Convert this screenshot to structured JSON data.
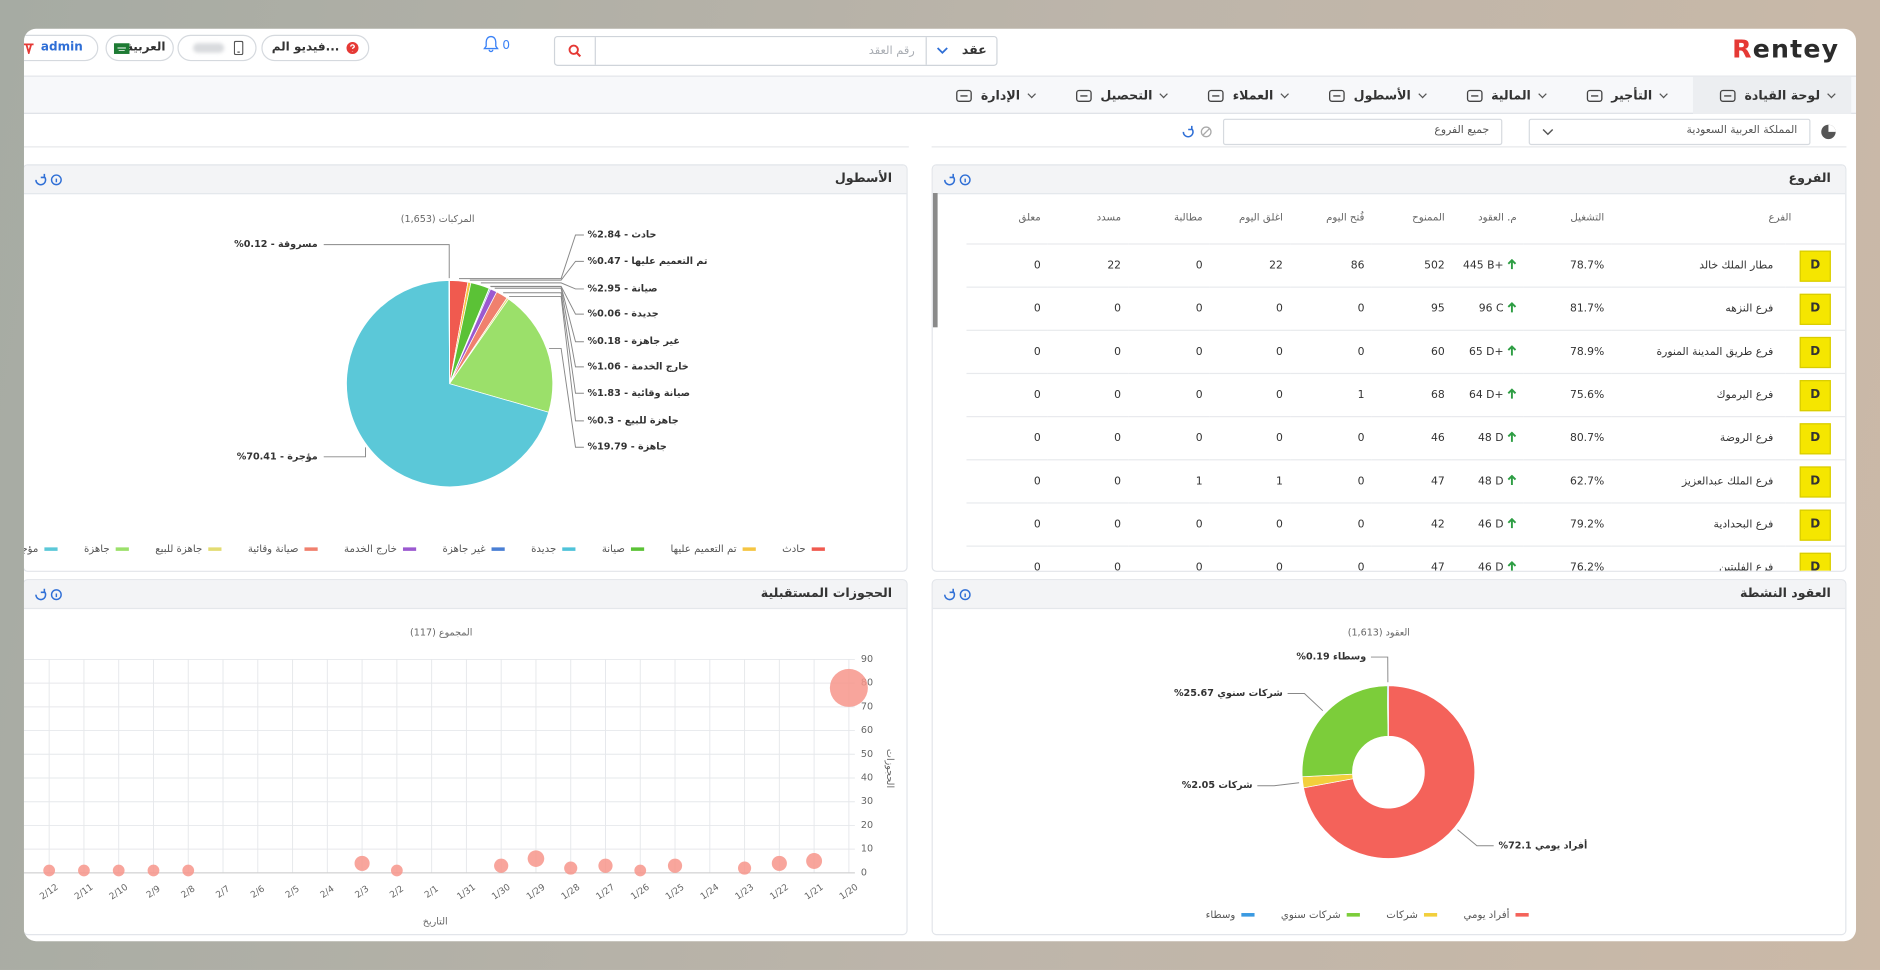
{
  "header": {
    "logo": "Rentey",
    "search_type": "عقد",
    "search_placeholder": "رقم العقد",
    "notifications": "0",
    "video_button": "فيديو الم...",
    "language": "العربية",
    "user": "admin"
  },
  "nav": [
    "لوحة القيادة",
    "التأجير",
    "المالية",
    "الأسطول",
    "العملاء",
    "التحصيل",
    "الإدارة"
  ],
  "filters": {
    "country": "المملكة العربية السعودية",
    "branch": "جميع الفروع"
  },
  "branches": {
    "title": "الفروع",
    "columns": [
      "الفرع",
      "التشغيل",
      "م. العقود",
      "الممنوح",
      "فُتح اليوم",
      "اغلق اليوم",
      "مطالبة",
      "مسدد",
      "معلق"
    ],
    "rows": [
      [
        "D",
        "مطار الملك خالد",
        "78.7%",
        "445 B+",
        "502",
        "86",
        "22",
        "0",
        "22",
        "0"
      ],
      [
        "D",
        "فرع النزهه",
        "81.7%",
        "96 C",
        "95",
        "0",
        "0",
        "0",
        "0",
        "0"
      ],
      [
        "D",
        "فرع طريق المدينة المنورة",
        "78.9%",
        "65 D+",
        "60",
        "0",
        "0",
        "0",
        "0",
        "0"
      ],
      [
        "D",
        "فرع اليرموك",
        "75.6%",
        "64 D+",
        "68",
        "1",
        "0",
        "0",
        "0",
        "0"
      ],
      [
        "D",
        "فرع الروضة",
        "80.7%",
        "48 D",
        "46",
        "0",
        "0",
        "0",
        "0",
        "0"
      ],
      [
        "D",
        "فرع الملك عبدالعزيز",
        "62.7%",
        "48 D",
        "47",
        "0",
        "1",
        "1",
        "0",
        "0"
      ],
      [
        "D",
        "فرع البحدادية",
        "79.2%",
        "46 D",
        "42",
        "0",
        "0",
        "0",
        "0",
        "0"
      ],
      [
        "D",
        "فرع الفليتين",
        "76.2%",
        "46 D",
        "47",
        "0",
        "0",
        "0",
        "0",
        "0"
      ]
    ]
  },
  "chart_data": [
    {
      "type": "pie",
      "title": "الأسطول",
      "subtitle": "المركبات (1,653)",
      "categories": [
        "حادث",
        "تم التعميم عليها",
        "صيانة",
        "جديدة",
        "غير جاهزة",
        "خارج الخدمة",
        "صيانة وقائية",
        "جاهزة للبيع",
        "جاهزة",
        "مؤجرة",
        "مسروقة"
      ],
      "values": [
        2.84,
        0.47,
        2.95,
        0.06,
        0.18,
        1.06,
        1.83,
        0.3,
        19.79,
        70.41,
        0.12
      ],
      "value_labels": [
        "حادث - 2.84%",
        "تم التعميم عليها - 0.47%",
        "صيانة - 2.95%",
        "جديدة - 0.06%",
        "غير جاهزة - 0.18%",
        "خارج الخدمة - 1.06%",
        "صيانة وقائية - 1.83%",
        "جاهزة للبيع - 0.3%",
        "جاهزة - 19.79%",
        "مؤجرة - 70.41%",
        "مسروقة - 0.12%"
      ],
      "colors": [
        "#f05a4f",
        "#f5c542",
        "#5bc236",
        "#4fc3d9",
        "#4a7fd4",
        "#9b59d0",
        "#f0806e",
        "#e3dc72",
        "#9be06a",
        "#5bc8d8",
        "#5b8fd9"
      ]
    },
    {
      "type": "scatter",
      "title": "الحجوزات المستقبلية",
      "subtitle": "المجموع (117)",
      "xlabel": "التاريخ",
      "ylabel": "الحجوزات",
      "categories": [
        "1/20",
        "1/21",
        "1/22",
        "1/23",
        "1/24",
        "1/25",
        "1/26",
        "1/27",
        "1/28",
        "1/29",
        "1/30",
        "1/31",
        "2/1",
        "2/2",
        "2/3",
        "2/4",
        "2/5",
        "2/6",
        "2/7",
        "2/8",
        "2/9",
        "2/10",
        "2/11",
        "2/12"
      ],
      "values": [
        78,
        5,
        4,
        2,
        null,
        3,
        1,
        3,
        2,
        6,
        3,
        null,
        null,
        1,
        4,
        null,
        null,
        null,
        null,
        1,
        1,
        1,
        1,
        1
      ],
      "color": "#f7958b",
      "ylim": [
        0,
        90
      ],
      "yticks": [
        0,
        10,
        20,
        30,
        40,
        50,
        60,
        70,
        80,
        90
      ],
      "grid": true
    },
    {
      "type": "donut",
      "title": "العقود النشطة",
      "subtitle": "العقود (1,613)",
      "categories": [
        "أفراد يومي",
        "شركات",
        "شركات سنوي",
        "وسطاء"
      ],
      "values": [
        72.1,
        2.05,
        25.67,
        0.19
      ],
      "value_labels": [
        "أفراد يومي 72.1%",
        "شركات 2.05%",
        "شركات سنوي 25.67%",
        "وسطاء 0.19%"
      ],
      "colors": [
        "#f4625a",
        "#f2cf3c",
        "#7ccd3a",
        "#3b9ae1"
      ]
    }
  ]
}
